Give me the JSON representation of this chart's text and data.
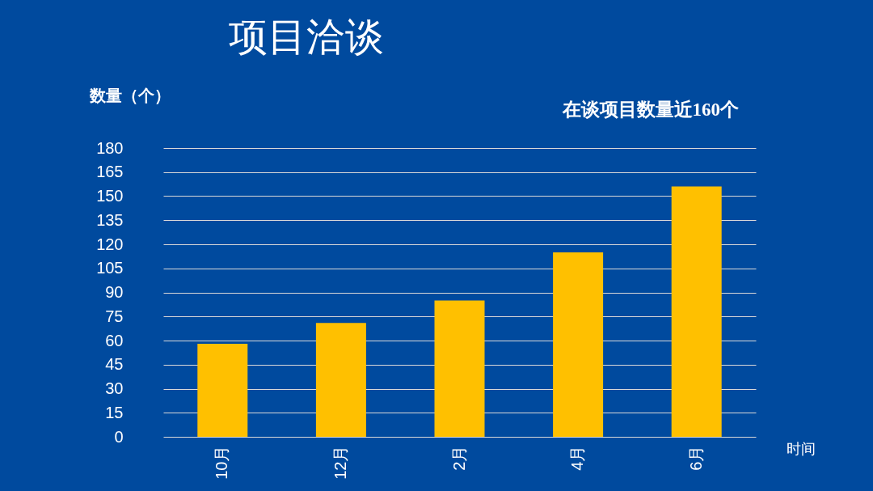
{
  "chart_data": {
    "type": "bar",
    "title": "项目洽谈",
    "ylabel": "数量（个）",
    "xlabel": "时间",
    "annotations": [
      "在谈项目数量近160个"
    ],
    "categories": [
      "10月",
      "12月",
      "2月",
      "4月",
      "6月"
    ],
    "values": [
      58,
      71,
      85,
      115,
      156
    ],
    "color": "#ffc000",
    "ylim": [
      0,
      180
    ],
    "yticks": [
      0,
      15,
      30,
      45,
      60,
      75,
      90,
      105,
      120,
      135,
      150,
      165,
      180
    ],
    "grid": "y"
  }
}
